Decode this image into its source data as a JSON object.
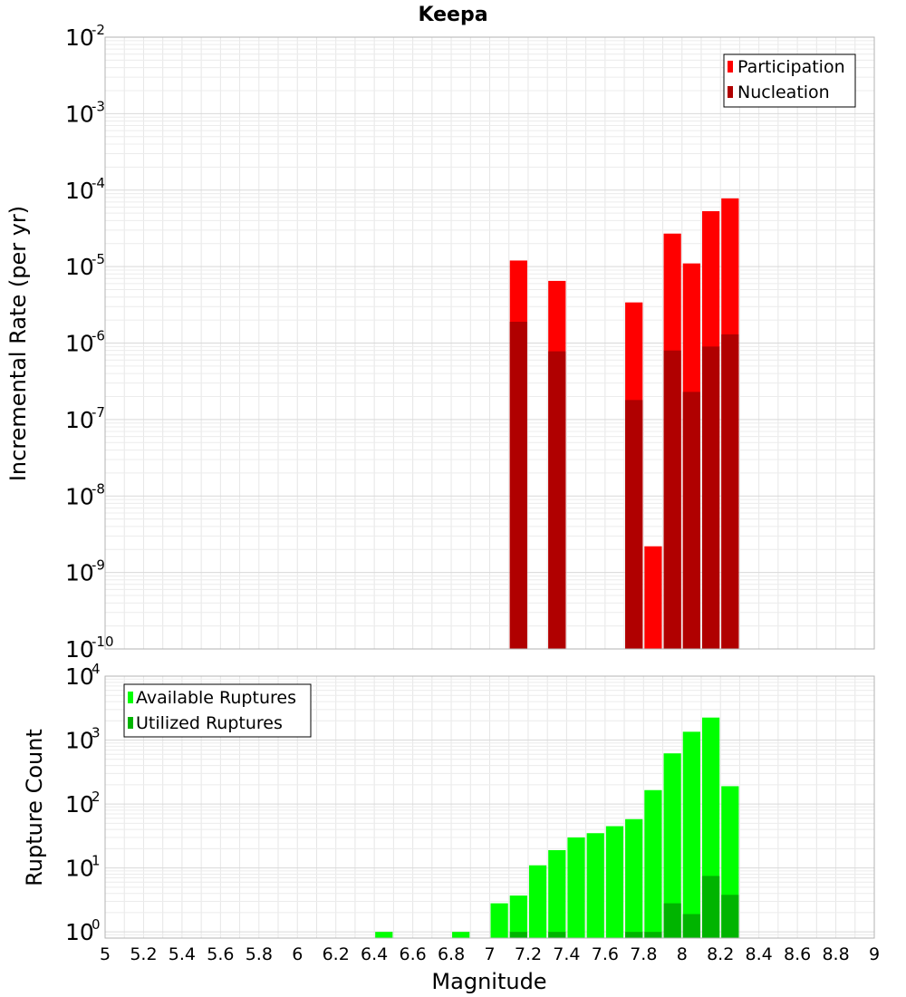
{
  "chart_data": [
    {
      "type": "bar",
      "title": "Keepa",
      "xlabel": "",
      "ylabel": "Incremental Rate (per yr)",
      "yscale": "log",
      "ylim": [
        1e-10,
        0.01
      ],
      "xlim": [
        5,
        9
      ],
      "bar_width": 0.1,
      "grid": true,
      "legend_position": "top-right",
      "ytick_labels": [
        {
          "value": 1e-10,
          "base": "10",
          "exp": "-10"
        },
        {
          "value": 1e-09,
          "base": "10",
          "exp": "-9"
        },
        {
          "value": 1e-08,
          "base": "10",
          "exp": "-8"
        },
        {
          "value": 1e-07,
          "base": "10",
          "exp": "-7"
        },
        {
          "value": 1e-06,
          "base": "10",
          "exp": "-6"
        },
        {
          "value": 1e-05,
          "base": "10",
          "exp": "-5"
        },
        {
          "value": 0.0001,
          "base": "10",
          "exp": "-4"
        },
        {
          "value": 0.001,
          "base": "10",
          "exp": "-3"
        },
        {
          "value": 0.01,
          "base": "10",
          "exp": "-2"
        }
      ],
      "series": [
        {
          "name": "Participation",
          "color": "#ff0000",
          "points": [
            {
              "x": 7.15,
              "y": 1.2e-05
            },
            {
              "x": 7.35,
              "y": 6.5e-06
            },
            {
              "x": 7.75,
              "y": 3.4e-06
            },
            {
              "x": 7.85,
              "y": 2.2e-09
            },
            {
              "x": 7.95,
              "y": 2.7e-05
            },
            {
              "x": 8.05,
              "y": 1.1e-05
            },
            {
              "x": 8.15,
              "y": 5.3e-05
            },
            {
              "x": 8.25,
              "y": 7.8e-05
            }
          ]
        },
        {
          "name": "Nucleation",
          "color": "#b00000",
          "points": [
            {
              "x": 7.15,
              "y": 1.9e-06
            },
            {
              "x": 7.35,
              "y": 7.8e-07
            },
            {
              "x": 7.75,
              "y": 1.8e-07
            },
            {
              "x": 7.95,
              "y": 8e-07
            },
            {
              "x": 8.05,
              "y": 2.3e-07
            },
            {
              "x": 8.15,
              "y": 9e-07
            },
            {
              "x": 8.25,
              "y": 1.3e-06
            }
          ]
        }
      ]
    },
    {
      "type": "bar",
      "title": "",
      "xlabel": "Magnitude",
      "ylabel": "Rupture Count",
      "yscale": "log",
      "ylim": [
        0.8,
        10000
      ],
      "xlim": [
        5,
        9
      ],
      "bar_width": 0.1,
      "grid": true,
      "legend_position": "top-left",
      "xticks": [
        "5",
        "5.2",
        "5.4",
        "5.6",
        "5.8",
        "6",
        "6.2",
        "6.4",
        "6.6",
        "6.8",
        "7",
        "7.2",
        "7.4",
        "7.6",
        "7.8",
        "8",
        "8.2",
        "8.4",
        "8.6",
        "8.8",
        "9"
      ],
      "ytick_labels": [
        {
          "value": 1,
          "base": "10",
          "exp": "0"
        },
        {
          "value": 10,
          "base": "10",
          "exp": "1"
        },
        {
          "value": 100,
          "base": "10",
          "exp": "2"
        },
        {
          "value": 1000,
          "base": "10",
          "exp": "3"
        },
        {
          "value": 10000,
          "base": "10",
          "exp": "4"
        }
      ],
      "series": [
        {
          "name": "Available Ruptures",
          "color": "#00ff00",
          "points": [
            {
              "x": 6.45,
              "y": 1
            },
            {
              "x": 6.85,
              "y": 1
            },
            {
              "x": 7.05,
              "y": 2.8
            },
            {
              "x": 7.15,
              "y": 3.7
            },
            {
              "x": 7.25,
              "y": 11
            },
            {
              "x": 7.35,
              "y": 19
            },
            {
              "x": 7.45,
              "y": 30
            },
            {
              "x": 7.55,
              "y": 35
            },
            {
              "x": 7.65,
              "y": 45
            },
            {
              "x": 7.75,
              "y": 58
            },
            {
              "x": 7.85,
              "y": 165
            },
            {
              "x": 7.95,
              "y": 620
            },
            {
              "x": 8.05,
              "y": 1350
            },
            {
              "x": 8.15,
              "y": 2250
            },
            {
              "x": 8.25,
              "y": 190
            }
          ]
        },
        {
          "name": "Utilized Ruptures",
          "color": "#00b400",
          "points": [
            {
              "x": 7.15,
              "y": 1
            },
            {
              "x": 7.35,
              "y": 1
            },
            {
              "x": 7.75,
              "y": 1
            },
            {
              "x": 7.85,
              "y": 1
            },
            {
              "x": 7.95,
              "y": 2.8
            },
            {
              "x": 8.05,
              "y": 1.9
            },
            {
              "x": 8.15,
              "y": 7.5
            },
            {
              "x": 8.25,
              "y": 3.8
            }
          ]
        }
      ]
    }
  ]
}
